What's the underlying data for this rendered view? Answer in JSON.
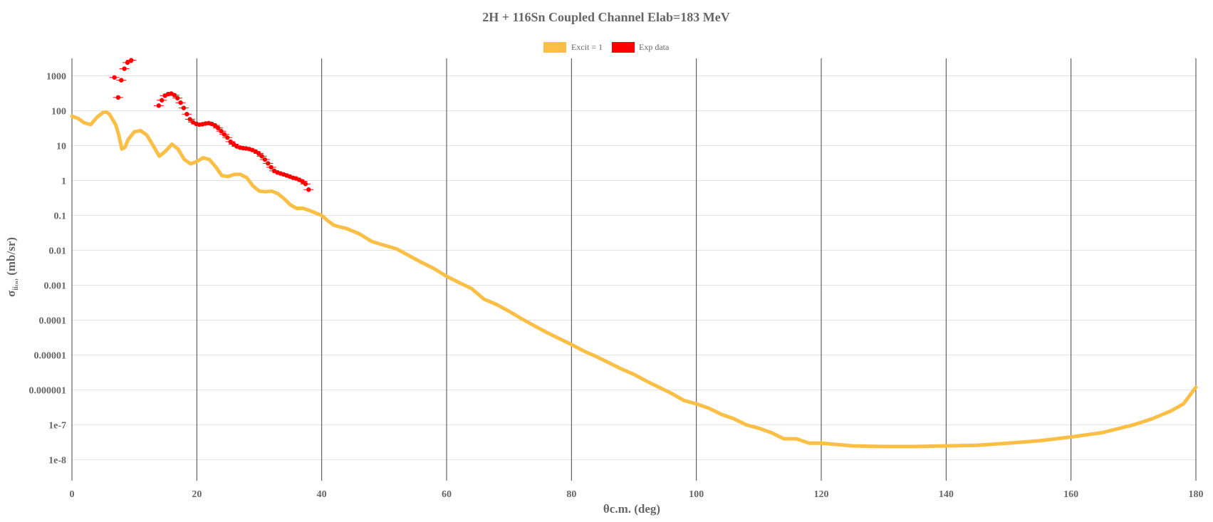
{
  "chart_data": {
    "type": "scatter",
    "title": "2H + 116Sn Coupled Channel Elab=183 MeV",
    "xlabel": "θc.m. (deg)",
    "ylabel": "σ",
    "ylabel_sub": "ii₍ₙ₎",
    "ylabel_tail": " (mb/sr)",
    "xlim": [
      0,
      180
    ],
    "ylim_log10": [
      -8.6,
      3.5
    ],
    "y_scale": "log",
    "grid": true,
    "legend_position": "top-center",
    "x_ticks": [
      {
        "value": 0,
        "label": "0"
      },
      {
        "value": 20,
        "label": "20"
      },
      {
        "value": 40,
        "label": "40"
      },
      {
        "value": 60,
        "label": "60"
      },
      {
        "value": 80,
        "label": "80"
      },
      {
        "value": 100,
        "label": "100"
      },
      {
        "value": 120,
        "label": "120"
      },
      {
        "value": 140,
        "label": "140"
      },
      {
        "value": 160,
        "label": "160"
      },
      {
        "value": 180,
        "label": "180"
      }
    ],
    "y_ticks": [
      {
        "exp": 3,
        "label": "1000"
      },
      {
        "exp": 2,
        "label": "100"
      },
      {
        "exp": 1,
        "label": "10"
      },
      {
        "exp": 0,
        "label": "1"
      },
      {
        "exp": -1,
        "label": "0.1"
      },
      {
        "exp": -2,
        "label": "0.01"
      },
      {
        "exp": -3,
        "label": "0.001"
      },
      {
        "exp": -4,
        "label": "0.0001"
      },
      {
        "exp": -5,
        "label": "0.00001"
      },
      {
        "exp": -6,
        "label": "0.000001"
      },
      {
        "exp": -7,
        "label": "1e-7"
      },
      {
        "exp": -8,
        "label": "1e-8"
      }
    ],
    "series": [
      {
        "name": "Excit = 1",
        "color": "#fbbf45",
        "kind": "curve",
        "points": [
          [
            0,
            70
          ],
          [
            1,
            60
          ],
          [
            2,
            45
          ],
          [
            3,
            40
          ],
          [
            4,
            65
          ],
          [
            5,
            90
          ],
          [
            5.5,
            92
          ],
          [
            6,
            80
          ],
          [
            7,
            40
          ],
          [
            7.5,
            20
          ],
          [
            8,
            8
          ],
          [
            8.5,
            9
          ],
          [
            9,
            15
          ],
          [
            10,
            25
          ],
          [
            11,
            27
          ],
          [
            12,
            20
          ],
          [
            13,
            10
          ],
          [
            14,
            5
          ],
          [
            15,
            7
          ],
          [
            16,
            11
          ],
          [
            17,
            8
          ],
          [
            18,
            4
          ],
          [
            19,
            3
          ],
          [
            20,
            3.5
          ],
          [
            21,
            4.5
          ],
          [
            22,
            4
          ],
          [
            23,
            2.5
          ],
          [
            24,
            1.4
          ],
          [
            25,
            1.3
          ],
          [
            26,
            1.5
          ],
          [
            27,
            1.5
          ],
          [
            28,
            1.2
          ],
          [
            29,
            0.7
          ],
          [
            30,
            0.5
          ],
          [
            31,
            0.48
          ],
          [
            32,
            0.5
          ],
          [
            33,
            0.42
          ],
          [
            34,
            0.3
          ],
          [
            35,
            0.2
          ],
          [
            36,
            0.16
          ],
          [
            37,
            0.16
          ],
          [
            38,
            0.14
          ],
          [
            40,
            0.1
          ],
          [
            41,
            0.07
          ],
          [
            42,
            0.052
          ],
          [
            44,
            0.042
          ],
          [
            46,
            0.03
          ],
          [
            48,
            0.018
          ],
          [
            50,
            0.014
          ],
          [
            52,
            0.011
          ],
          [
            54,
            0.007
          ],
          [
            56,
            0.0045
          ],
          [
            58,
            0.003
          ],
          [
            60,
            0.0018
          ],
          [
            62,
            0.0012
          ],
          [
            64,
            0.0008
          ],
          [
            66,
            0.0004
          ],
          [
            68,
            0.00028
          ],
          [
            70,
            0.00018
          ],
          [
            72,
            0.00011
          ],
          [
            74,
            7e-05
          ],
          [
            76,
            4.5e-05
          ],
          [
            78,
            3e-05
          ],
          [
            80,
            2e-05
          ],
          [
            82,
            1.3e-05
          ],
          [
            84,
            9e-06
          ],
          [
            86,
            6e-06
          ],
          [
            88,
            4e-06
          ],
          [
            90,
            2.8e-06
          ],
          [
            92,
            1.8e-06
          ],
          [
            94,
            1.2e-06
          ],
          [
            96,
            8e-07
          ],
          [
            98,
            5e-07
          ],
          [
            100,
            4e-07
          ],
          [
            102,
            3e-07
          ],
          [
            104,
            2e-07
          ],
          [
            106,
            1.5e-07
          ],
          [
            108,
            1e-07
          ],
          [
            110,
            8e-08
          ],
          [
            112,
            6e-08
          ],
          [
            114,
            4e-08
          ],
          [
            116,
            4e-08
          ],
          [
            118,
            3e-08
          ],
          [
            120,
            3e-08
          ],
          [
            125,
            2.5e-08
          ],
          [
            130,
            2.4e-08
          ],
          [
            135,
            2.4e-08
          ],
          [
            140,
            2.5e-08
          ],
          [
            145,
            2.6e-08
          ],
          [
            150,
            3e-08
          ],
          [
            155,
            3.5e-08
          ],
          [
            160,
            4.5e-08
          ],
          [
            165,
            6e-08
          ],
          [
            170,
            1e-07
          ],
          [
            173,
            1.5e-07
          ],
          [
            176,
            2.5e-07
          ],
          [
            178,
            4e-07
          ],
          [
            180,
            1.2e-06
          ]
        ]
      },
      {
        "name": "Exp data",
        "color": "#ff0000",
        "kind": "markers",
        "points": [
          [
            6.8,
            900
          ],
          [
            7.4,
            240
          ],
          [
            7.9,
            750
          ],
          [
            8.4,
            1600
          ],
          [
            8.9,
            2400
          ],
          [
            9.5,
            2800
          ],
          [
            13.9,
            140
          ],
          [
            14.4,
            200
          ],
          [
            14.9,
            270
          ],
          [
            15.4,
            300
          ],
          [
            15.9,
            310
          ],
          [
            16.4,
            280
          ],
          [
            16.9,
            230
          ],
          [
            17.4,
            170
          ],
          [
            17.9,
            120
          ],
          [
            18.4,
            80
          ],
          [
            18.9,
            57
          ],
          [
            19.4,
            47
          ],
          [
            19.9,
            42
          ],
          [
            20.4,
            40
          ],
          [
            20.9,
            41
          ],
          [
            21.4,
            43
          ],
          [
            21.9,
            44
          ],
          [
            22.4,
            42
          ],
          [
            22.9,
            38
          ],
          [
            23.4,
            32
          ],
          [
            23.9,
            26
          ],
          [
            24.4,
            21
          ],
          [
            24.9,
            17
          ],
          [
            25.4,
            13
          ],
          [
            25.9,
            11
          ],
          [
            26.4,
            9.5
          ],
          [
            26.9,
            8.8
          ],
          [
            27.4,
            8.5
          ],
          [
            27.9,
            8.3
          ],
          [
            28.4,
            8
          ],
          [
            28.9,
            7.5
          ],
          [
            29.4,
            6.8
          ],
          [
            29.9,
            6
          ],
          [
            30.4,
            5
          ],
          [
            30.9,
            4
          ],
          [
            31.4,
            3.1
          ],
          [
            31.9,
            2.4
          ],
          [
            32.4,
            1.9
          ],
          [
            32.9,
            1.7
          ],
          [
            33.4,
            1.6
          ],
          [
            33.9,
            1.5
          ],
          [
            34.4,
            1.4
          ],
          [
            34.9,
            1.3
          ],
          [
            35.4,
            1.2
          ],
          [
            35.9,
            1.15
          ],
          [
            36.4,
            1.05
          ],
          [
            36.9,
            0.95
          ],
          [
            37.4,
            0.8
          ],
          [
            37.9,
            0.55
          ]
        ]
      }
    ]
  }
}
